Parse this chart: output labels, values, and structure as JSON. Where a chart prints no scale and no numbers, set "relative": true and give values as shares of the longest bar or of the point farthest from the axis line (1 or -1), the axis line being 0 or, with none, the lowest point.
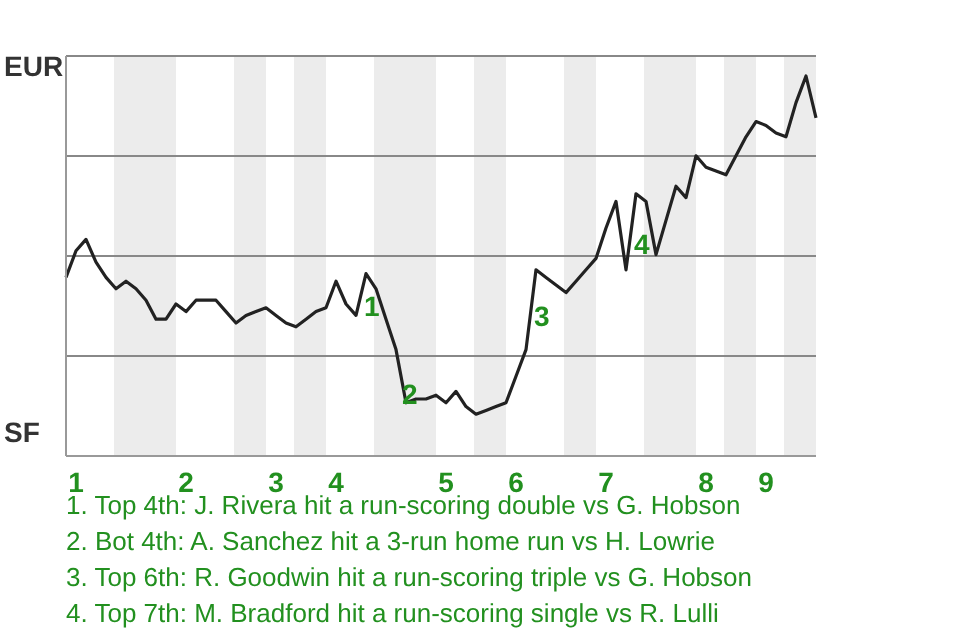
{
  "chart_data": {
    "type": "line",
    "relative": true,
    "categories": [
      null,
      "1",
      null,
      null,
      null,
      null,
      null,
      null,
      null,
      null,
      null,
      null,
      "2",
      null,
      null,
      null,
      null,
      null,
      null,
      null,
      null,
      "3",
      null,
      null,
      null,
      null,
      null,
      "4",
      null,
      null,
      null,
      null,
      null,
      null,
      null,
      null,
      null,
      null,
      "5",
      null,
      null,
      null,
      null,
      null,
      null,
      "6",
      null,
      null,
      null,
      null,
      null,
      null,
      null,
      null,
      "7",
      null,
      null,
      null,
      null,
      null,
      null,
      null,
      null,
      null,
      "8",
      null,
      null,
      null,
      null,
      null,
      "9",
      null,
      null,
      null,
      null,
      null
    ],
    "series": [
      {
        "color": "#222222",
        "values": [
          0.47,
          0.54,
          0.57,
          0.51,
          0.47,
          0.44,
          0.46,
          0.44,
          0.41,
          0.36,
          0.36,
          0.4,
          0.38,
          0.41,
          0.41,
          0.41,
          0.38,
          0.35,
          0.37,
          0.38,
          0.39,
          0.37,
          0.35,
          0.34,
          0.36,
          0.38,
          0.39,
          0.46,
          0.4,
          0.37,
          0.48,
          0.44,
          0.36,
          0.28,
          0.14,
          0.15,
          0.15,
          0.16,
          0.14,
          0.17,
          0.13,
          0.11,
          0.12,
          0.13,
          0.14,
          0.21,
          0.28,
          0.49,
          0.47,
          0.45,
          0.43,
          0.46,
          0.49,
          0.52,
          0.6,
          0.67,
          0.49,
          0.69,
          0.67,
          0.53,
          0.62,
          0.71,
          0.68,
          0.79,
          0.76,
          0.75,
          0.74,
          0.79,
          0.84,
          0.88,
          0.87,
          0.85,
          0.84,
          0.93,
          1,
          0.89
        ]
      }
    ],
    "grid": "y",
    "annotations": [
      "EUR",
      "SF",
      "1",
      "2",
      "3",
      "4",
      "1. Top 4th: J. Rivera hit a run-scoring double vs G. Hobson",
      "2. Bot 4th: A. Sanchez hit a 3-run home run vs H. Lowrie",
      "3. Top 6th: R. Goodwin hit a run-scoring triple vs G. Hobson",
      "4. Top 7th: M. Bradford hit a run-scoring single vs R. Lulli"
    ]
  }
}
